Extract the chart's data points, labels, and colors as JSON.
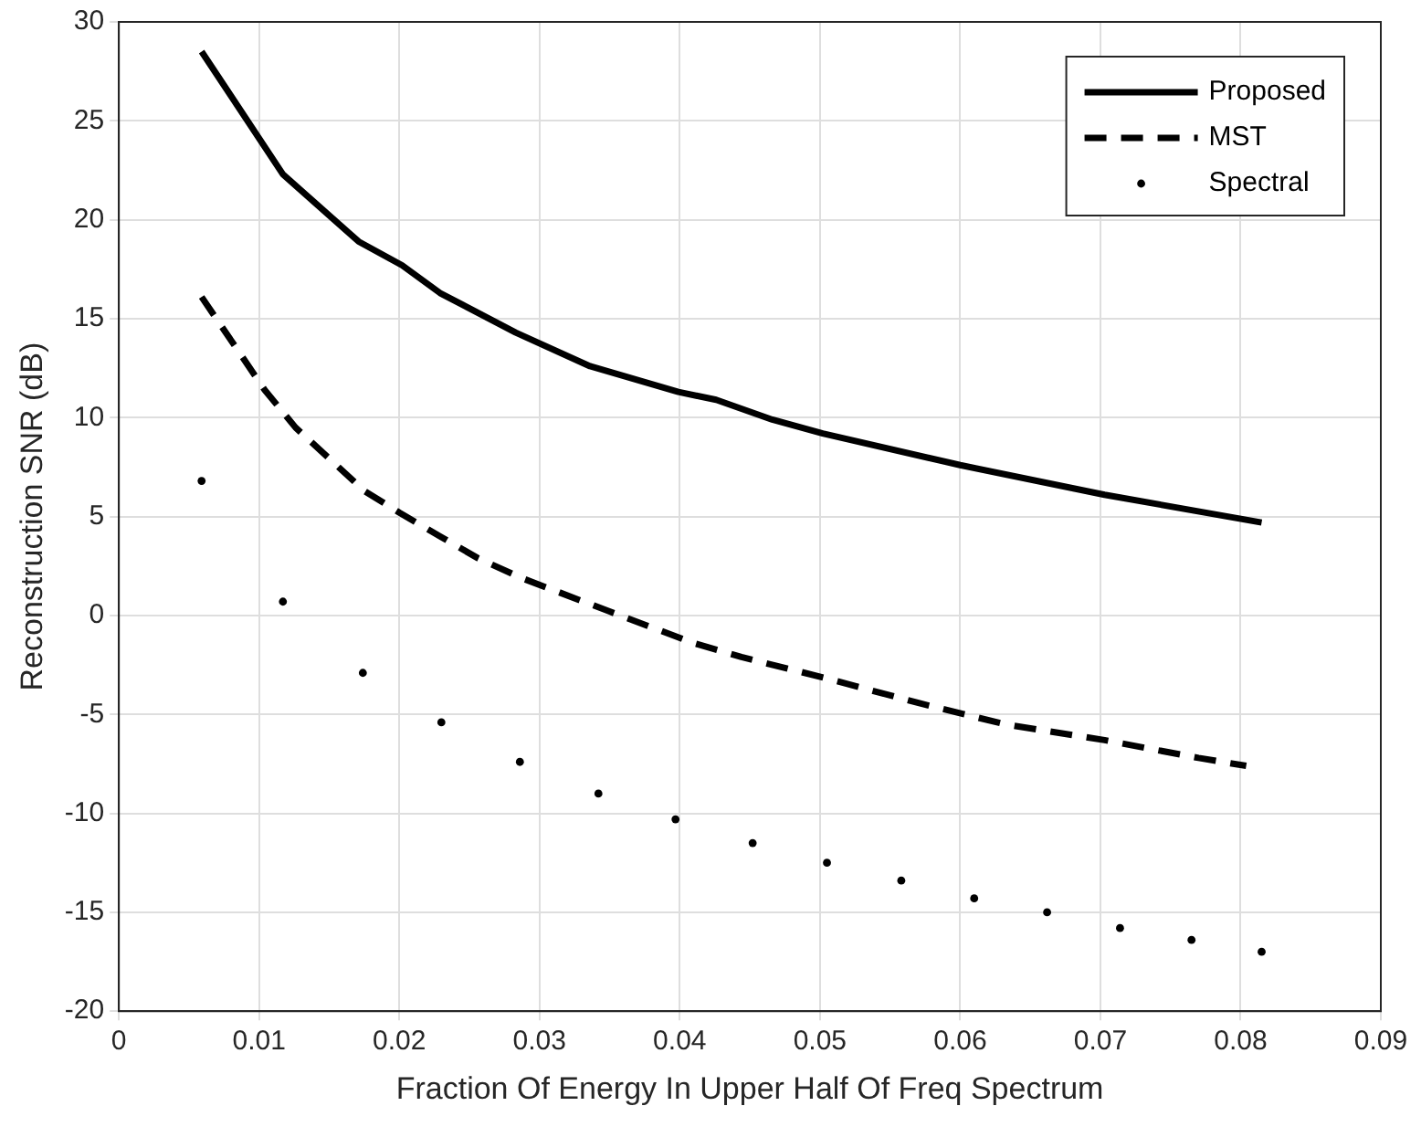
{
  "chart_data": {
    "type": "line",
    "xlabel": "Fraction Of Energy In Upper Half Of Freq Spectrum",
    "ylabel": "Reconstruction SNR (dB)",
    "xlim": [
      0,
      0.09
    ],
    "xticks": [
      0,
      0.01,
      0.02,
      0.03,
      0.04,
      0.05,
      0.06,
      0.07,
      0.08,
      0.09
    ],
    "ylim": [
      -20,
      30
    ],
    "yticks": [
      -20,
      -15,
      -10,
      -5,
      0,
      5,
      10,
      15,
      20,
      25,
      30
    ],
    "grid": true,
    "legend": "top right",
    "series": [
      {
        "name": "Proposed",
        "color": "#000000",
        "line_style": "solid",
        "marker": "none",
        "x": [
          0.0059,
          0.0117,
          0.0171,
          0.0202,
          0.0229,
          0.0283,
          0.0336,
          0.0399,
          0.0426,
          0.0466,
          0.0502,
          0.06,
          0.0703,
          0.0815
        ],
        "values": [
          28.5,
          22.3,
          18.9,
          17.7,
          16.3,
          14.3,
          12.6,
          11.3,
          10.9,
          9.9,
          9.2,
          7.6,
          6.1,
          4.7
        ]
      },
      {
        "name": "MST",
        "color": "#000000",
        "line_style": "dashed",
        "marker": "none",
        "x": [
          0.0059,
          0.0104,
          0.0126,
          0.0175,
          0.02,
          0.0229,
          0.0256,
          0.0287,
          0.035,
          0.041,
          0.0444,
          0.0506,
          0.0569,
          0.0632,
          0.0703,
          0.077,
          0.0804
        ],
        "values": [
          16.1,
          11.4,
          9.5,
          6.3,
          5.2,
          4.0,
          2.9,
          1.9,
          0.2,
          -1.4,
          -2.1,
          -3.2,
          -4.4,
          -5.5,
          -6.3,
          -7.2,
          -7.6
        ]
      },
      {
        "name": "Spectral",
        "type": "scatter",
        "color": "#000000",
        "marker": "circle",
        "x": [
          0.0059,
          0.0117,
          0.0174,
          0.023,
          0.0286,
          0.0342,
          0.0397,
          0.0452,
          0.0505,
          0.0558,
          0.061,
          0.0662,
          0.0714,
          0.0765,
          0.0815
        ],
        "values": [
          6.8,
          0.7,
          -2.9,
          -5.4,
          -7.4,
          -9.0,
          -10.3,
          -11.5,
          -12.5,
          -13.4,
          -14.3,
          -15.0,
          -15.8,
          -16.4,
          -17.0
        ]
      }
    ]
  }
}
